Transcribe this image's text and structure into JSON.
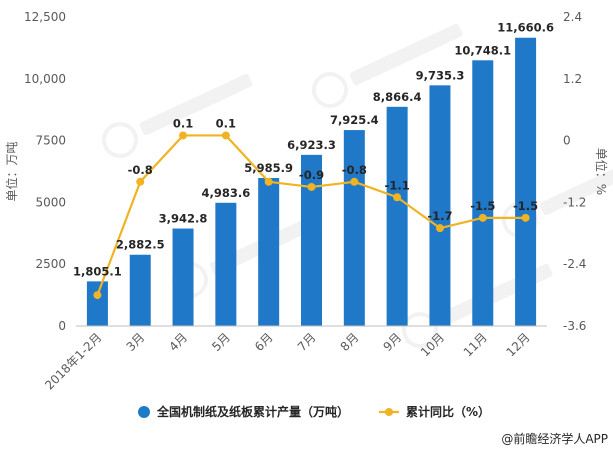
{
  "chart_data": {
    "type": "bar",
    "categories": [
      "2018年1-2月",
      "3月",
      "4月",
      "5月",
      "6月",
      "7月",
      "8月",
      "9月",
      "10月",
      "11月",
      "12月"
    ],
    "series": [
      {
        "name": "全国机制纸及纸板累计产量（万吨）",
        "chart_type": "bar",
        "axis": "left",
        "color": "#1f78c8",
        "values": [
          1805.1,
          2882.5,
          3942.8,
          4983.6,
          5985.9,
          6923.3,
          7925.4,
          8866.4,
          9735.3,
          10748.1,
          11660.6
        ],
        "labels": [
          "1,805.1",
          "2,882.5",
          "3,942.8",
          "4,983.6",
          "5,985.9",
          "6,923.3",
          "7,925.4",
          "8,866.4",
          "9,735.3",
          "10,748.1",
          "11,660.6"
        ]
      },
      {
        "name": "累计同比（%）",
        "chart_type": "line",
        "axis": "right",
        "color": "#f0b323",
        "values": [
          -3.0,
          -0.8,
          0.1,
          0.1,
          -0.8,
          -0.9,
          -0.8,
          -1.1,
          -1.7,
          -1.5,
          -1.5
        ],
        "labels": [
          "",
          "-0.8",
          "0.1",
          "0.1",
          "",
          "-0.9",
          "-0.8",
          "-1.1",
          "-1.7",
          "-1.5",
          "-1.5"
        ]
      }
    ],
    "y_left": {
      "label": "单位：万吨",
      "ylim": [
        0,
        12500
      ],
      "ticks": [
        0,
        2500,
        5000,
        7500,
        10000,
        12500
      ],
      "tick_labels": [
        "0",
        "2500",
        "5000",
        "7500",
        "10,000",
        "12,500"
      ]
    },
    "y_right": {
      "label": "单位：%",
      "ylim": [
        -3.6,
        2.4
      ],
      "ticks": [
        -3.6,
        -2.4,
        -1.2,
        0,
        1.2,
        2.4
      ],
      "tick_labels": [
        "-3.6",
        "-2.4",
        "-1.2",
        "0",
        "1.2",
        "2.4"
      ]
    },
    "grid": false,
    "legend_position": "bottom",
    "source": "@前瞻经济学人APP"
  }
}
